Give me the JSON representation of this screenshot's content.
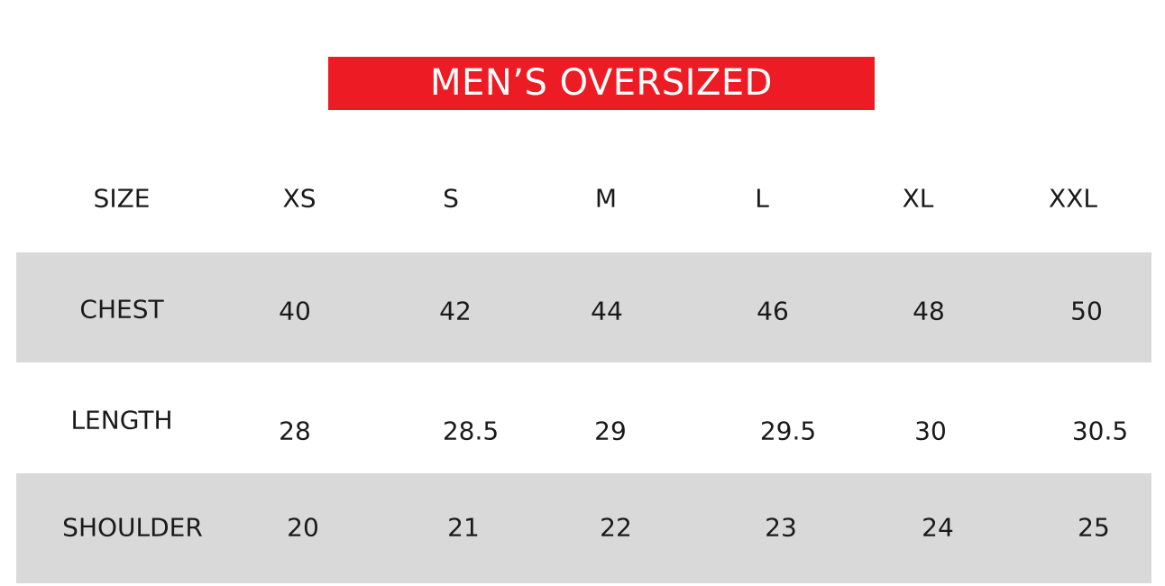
{
  "title": "MEN’S OVERSIZED",
  "header": {
    "label": "SIZE",
    "sizes": [
      "XS",
      "S",
      "M",
      "L",
      "XL",
      "XXL"
    ]
  },
  "rows": [
    {
      "label": "CHEST",
      "values": [
        "40",
        "42",
        "44",
        "46",
        "48",
        "50"
      ]
    },
    {
      "label": "LENGTH",
      "values": [
        "28",
        "28.5",
        "29",
        "29.5",
        "30",
        "30.5"
      ]
    },
    {
      "label": "SHOULDER",
      "values": [
        "20",
        "21",
        "22",
        "23",
        "24",
        "25"
      ]
    }
  ],
  "colors": {
    "title_bg": "#ed1c24",
    "band": "#d9d9d9"
  }
}
